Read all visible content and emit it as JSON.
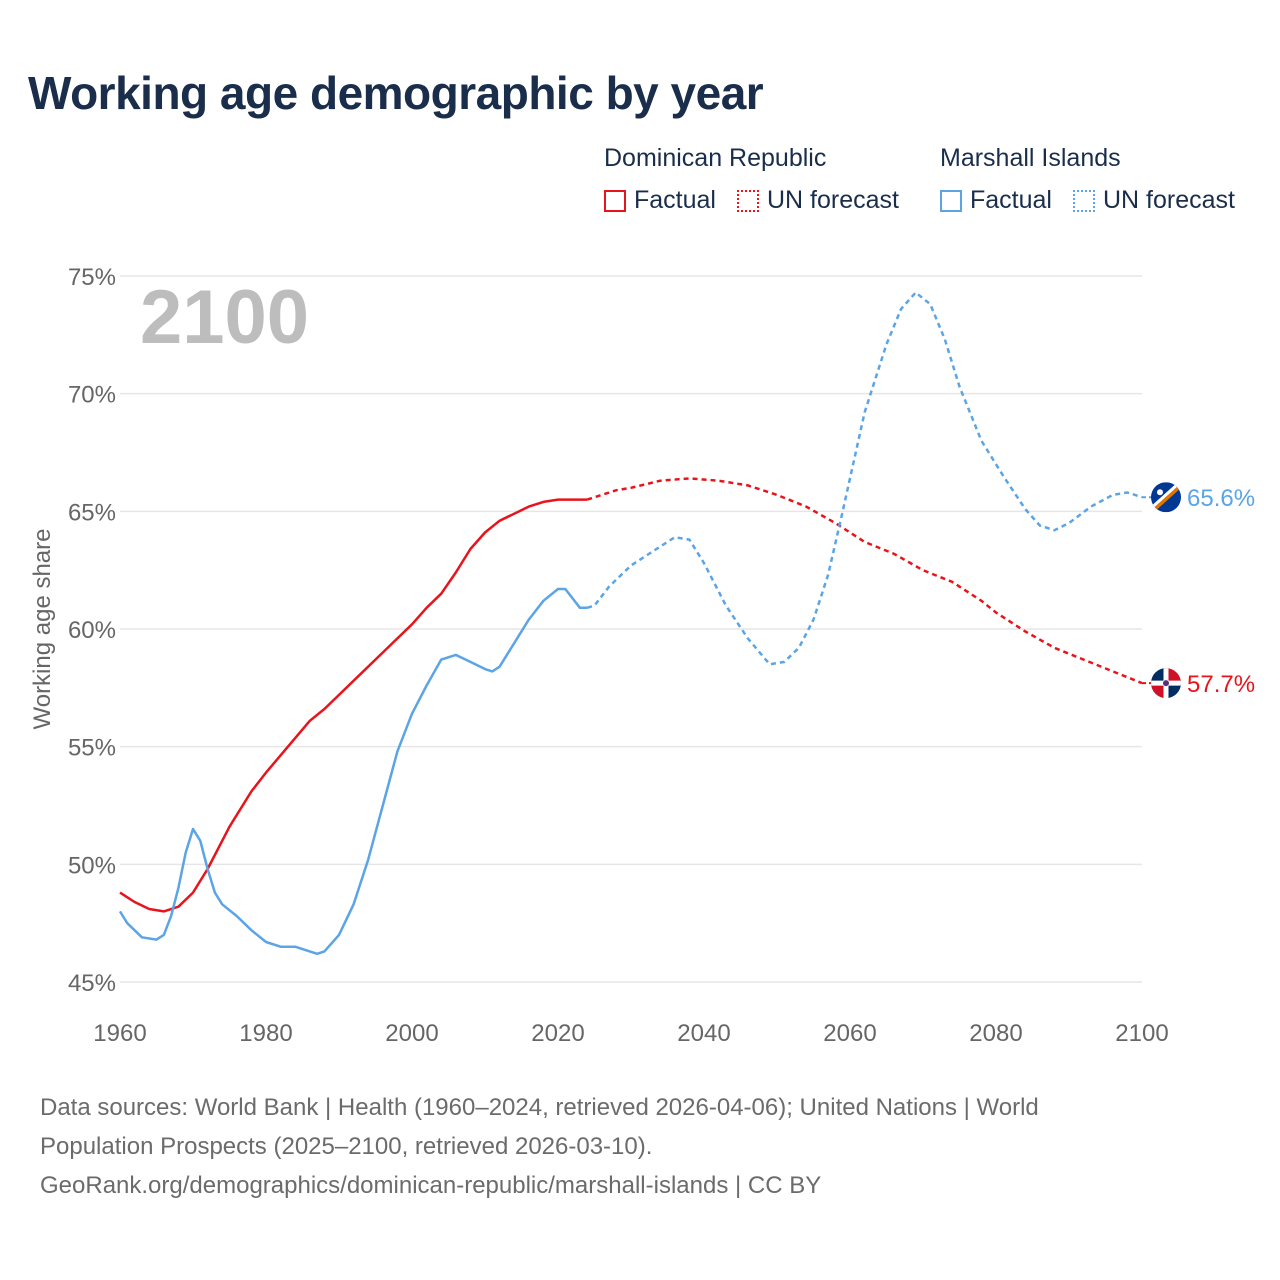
{
  "title": "Working age demographic by year",
  "legend": {
    "groups": [
      {
        "country": "Dominican Republic",
        "factual": "Factual",
        "forecast": "UN forecast",
        "color": "#e8141b"
      },
      {
        "country": "Marshall Islands",
        "factual": "Factual",
        "forecast": "UN forecast",
        "color": "#5ba4e6"
      }
    ]
  },
  "source": {
    "line1": "Data sources: World Bank | Health (1960–2024, retrieved 2026-04-06); United Nations | World",
    "line2": "Population Prospects (2025–2100, retrieved 2026-03-10).",
    "line3": "GeoRank.org/demographics/dominican-republic/marshall-islands | CC BY"
  },
  "chart_data": {
    "type": "line",
    "title": "Working age demographic by year",
    "ylabel": "Working age share",
    "xlabel": "",
    "year_overlay": "2100",
    "xlim": [
      1960,
      2100
    ],
    "ylim": [
      45,
      75
    ],
    "x_ticks": [
      1960,
      1980,
      2000,
      2020,
      2040,
      2060,
      2080,
      2100
    ],
    "y_ticks": [
      {
        "value": 45,
        "label": "45%"
      },
      {
        "value": 50,
        "label": "50%"
      },
      {
        "value": 55,
        "label": "55%"
      },
      {
        "value": 60,
        "label": "60%"
      },
      {
        "value": 65,
        "label": "65%"
      },
      {
        "value": 70,
        "label": "70%"
      },
      {
        "value": 75,
        "label": "75%"
      }
    ],
    "forecast_start": 2024,
    "series": [
      {
        "name": "Dominican Republic",
        "color": "#e8141b",
        "end_label": "57.7%",
        "flag": "dominican-republic-flag-icon",
        "points": [
          [
            1960,
            48.8
          ],
          [
            1962,
            48.4
          ],
          [
            1964,
            48.1
          ],
          [
            1966,
            48.0
          ],
          [
            1968,
            48.2
          ],
          [
            1970,
            48.8
          ],
          [
            1972,
            49.8
          ],
          [
            1975,
            51.6
          ],
          [
            1978,
            53.1
          ],
          [
            1980,
            53.9
          ],
          [
            1983,
            55.0
          ],
          [
            1986,
            56.1
          ],
          [
            1988,
            56.6
          ],
          [
            1990,
            57.2
          ],
          [
            1993,
            58.1
          ],
          [
            1996,
            59.0
          ],
          [
            1998,
            59.6
          ],
          [
            2000,
            60.2
          ],
          [
            2002,
            60.9
          ],
          [
            2004,
            61.5
          ],
          [
            2006,
            62.4
          ],
          [
            2008,
            63.4
          ],
          [
            2010,
            64.1
          ],
          [
            2012,
            64.6
          ],
          [
            2014,
            64.9
          ],
          [
            2016,
            65.2
          ],
          [
            2018,
            65.4
          ],
          [
            2020,
            65.5
          ],
          [
            2022,
            65.5
          ],
          [
            2024,
            65.5
          ],
          [
            2026,
            65.7
          ],
          [
            2028,
            65.9
          ],
          [
            2030,
            66.0
          ],
          [
            2034,
            66.3
          ],
          [
            2038,
            66.4
          ],
          [
            2042,
            66.3
          ],
          [
            2046,
            66.1
          ],
          [
            2050,
            65.7
          ],
          [
            2054,
            65.2
          ],
          [
            2058,
            64.5
          ],
          [
            2062,
            63.7
          ],
          [
            2066,
            63.2
          ],
          [
            2070,
            62.5
          ],
          [
            2074,
            62.0
          ],
          [
            2078,
            61.2
          ],
          [
            2080,
            60.7
          ],
          [
            2084,
            59.9
          ],
          [
            2088,
            59.2
          ],
          [
            2092,
            58.7
          ],
          [
            2096,
            58.2
          ],
          [
            2100,
            57.7
          ]
        ]
      },
      {
        "name": "Marshall Islands",
        "color": "#5ba4e6",
        "end_label": "65.6%",
        "flag": "marshall-islands-flag-icon",
        "points": [
          [
            1960,
            48.0
          ],
          [
            1961,
            47.5
          ],
          [
            1963,
            46.9
          ],
          [
            1965,
            46.8
          ],
          [
            1966,
            47.0
          ],
          [
            1967,
            47.8
          ],
          [
            1968,
            49.0
          ],
          [
            1969,
            50.5
          ],
          [
            1970,
            51.5
          ],
          [
            1971,
            51.0
          ],
          [
            1972,
            49.8
          ],
          [
            1973,
            48.8
          ],
          [
            1974,
            48.3
          ],
          [
            1976,
            47.8
          ],
          [
            1978,
            47.2
          ],
          [
            1980,
            46.7
          ],
          [
            1982,
            46.5
          ],
          [
            1984,
            46.5
          ],
          [
            1986,
            46.3
          ],
          [
            1987,
            46.2
          ],
          [
            1988,
            46.3
          ],
          [
            1990,
            47.0
          ],
          [
            1992,
            48.3
          ],
          [
            1994,
            50.2
          ],
          [
            1996,
            52.5
          ],
          [
            1998,
            54.8
          ],
          [
            2000,
            56.4
          ],
          [
            2002,
            57.6
          ],
          [
            2004,
            58.7
          ],
          [
            2006,
            58.9
          ],
          [
            2008,
            58.6
          ],
          [
            2010,
            58.3
          ],
          [
            2011,
            58.2
          ],
          [
            2012,
            58.4
          ],
          [
            2014,
            59.4
          ],
          [
            2016,
            60.4
          ],
          [
            2018,
            61.2
          ],
          [
            2020,
            61.7
          ],
          [
            2021,
            61.7
          ],
          [
            2022,
            61.3
          ],
          [
            2023,
            60.9
          ],
          [
            2024,
            60.9
          ],
          [
            2025,
            61.0
          ],
          [
            2027,
            61.8
          ],
          [
            2030,
            62.7
          ],
          [
            2033,
            63.3
          ],
          [
            2036,
            63.9
          ],
          [
            2038,
            63.8
          ],
          [
            2040,
            62.8
          ],
          [
            2043,
            61.0
          ],
          [
            2046,
            59.6
          ],
          [
            2049,
            58.5
          ],
          [
            2051,
            58.6
          ],
          [
            2053,
            59.2
          ],
          [
            2055,
            60.4
          ],
          [
            2057,
            62.3
          ],
          [
            2059,
            65.0
          ],
          [
            2062,
            69.2
          ],
          [
            2065,
            72.1
          ],
          [
            2067,
            73.6
          ],
          [
            2069,
            74.3
          ],
          [
            2071,
            73.8
          ],
          [
            2073,
            72.3
          ],
          [
            2075,
            70.3
          ],
          [
            2078,
            68.0
          ],
          [
            2081,
            66.5
          ],
          [
            2084,
            65.1
          ],
          [
            2086,
            64.4
          ],
          [
            2088,
            64.2
          ],
          [
            2090,
            64.5
          ],
          [
            2093,
            65.2
          ],
          [
            2096,
            65.7
          ],
          [
            2098,
            65.8
          ],
          [
            2100,
            65.6
          ]
        ]
      }
    ]
  }
}
